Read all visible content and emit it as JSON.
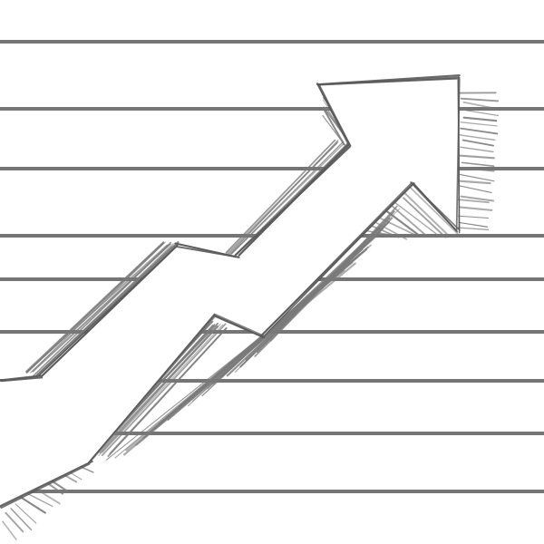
{
  "image": {
    "subject": "hand-drawn-upward-arrow-over-lined-paper",
    "colors": {
      "background": "#ffffff",
      "rule_line": "#6e6e6e",
      "ink": "#5a5a5a",
      "hatch": "#7a7a7a"
    }
  }
}
